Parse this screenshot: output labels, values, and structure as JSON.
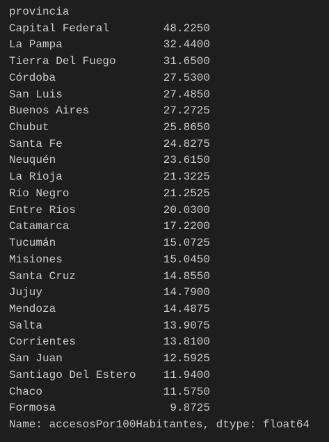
{
  "header": "provincia",
  "rows": [
    {
      "name": "Capital Federal",
      "value": "48.2250"
    },
    {
      "name": "La Pampa",
      "value": "32.4400"
    },
    {
      "name": "Tierra Del Fuego",
      "value": "31.6500"
    },
    {
      "name": "Córdoba",
      "value": "27.5300"
    },
    {
      "name": "San Luis",
      "value": "27.4850"
    },
    {
      "name": "Buenos Aires",
      "value": "27.2725"
    },
    {
      "name": "Chubut",
      "value": "25.8650"
    },
    {
      "name": "Santa Fe",
      "value": "24.8275"
    },
    {
      "name": "Neuquén",
      "value": "23.6150"
    },
    {
      "name": "La Rioja",
      "value": "21.3225"
    },
    {
      "name": "Río Negro",
      "value": "21.2525"
    },
    {
      "name": "Entre Ríos",
      "value": "20.0300"
    },
    {
      "name": "Catamarca",
      "value": "17.2200"
    },
    {
      "name": "Tucumán",
      "value": "15.0725"
    },
    {
      "name": "Misiones",
      "value": "15.0450"
    },
    {
      "name": "Santa Cruz",
      "value": "14.8550"
    },
    {
      "name": "Jujuy",
      "value": "14.7900"
    },
    {
      "name": "Mendoza",
      "value": "14.4875"
    },
    {
      "name": "Salta",
      "value": "13.9075"
    },
    {
      "name": "Corrientes",
      "value": "13.8100"
    },
    {
      "name": "San Juan",
      "value": "12.5925"
    },
    {
      "name": "Santiago Del Estero",
      "value": "11.9400"
    },
    {
      "name": "Chaco",
      "value": "11.5750"
    },
    {
      "name": "Formosa",
      "value": "9.8725"
    }
  ],
  "footer": "Name: accesosPor100Habitantes, dtype: float64"
}
